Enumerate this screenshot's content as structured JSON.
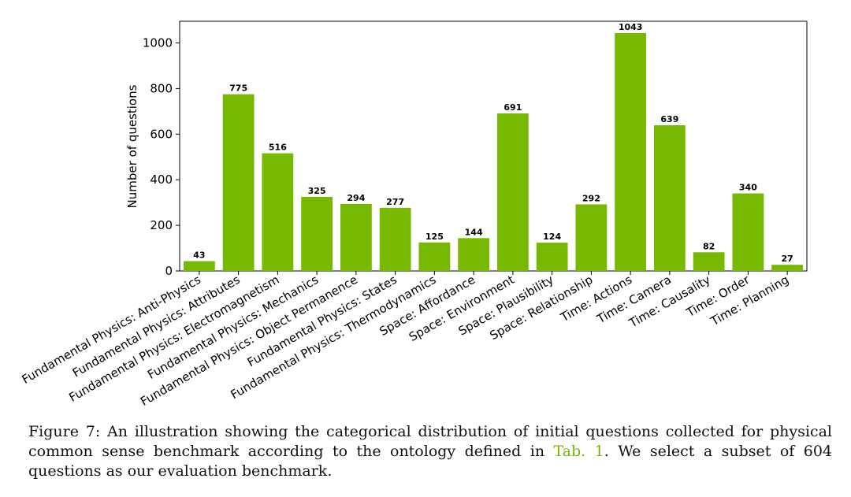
{
  "chart_data": {
    "type": "bar",
    "categories": [
      "Fundamental Physics: Anti-Physics",
      "Fundamental Physics: Attributes",
      "Fundamental Physics: Electromagnetism",
      "Fundamental Physics: Mechanics",
      "Fundamental Physics: Object Permanence",
      "Fundamental Physics: States",
      "Fundamental Physics: Thermodynamics",
      "Space: Affordance",
      "Space: Environment",
      "Space: Plausibility",
      "Space: Relationship",
      "Time: Actions",
      "Time: Camera",
      "Time: Causality",
      "Time: Order",
      "Time: Planning"
    ],
    "values": [
      43,
      775,
      516,
      325,
      294,
      277,
      125,
      144,
      691,
      124,
      292,
      1043,
      639,
      82,
      340,
      27
    ],
    "value_labels": [
      "43",
      "775",
      "516",
      "325",
      "294",
      "277",
      "125",
      "144",
      "691",
      "124",
      "292",
      "1043",
      "639",
      "82",
      "340",
      "27"
    ],
    "ylabel": "Number of questions",
    "ylim": [
      0,
      1095
    ],
    "yticks": [
      0,
      200,
      400,
      600,
      800,
      1000
    ],
    "ytick_labels": [
      "0",
      "200",
      "400",
      "600",
      "800",
      "1000"
    ],
    "bar_color": "#76b900",
    "grid": false,
    "data_labels": true
  },
  "caption": {
    "prefix": "Figure 7: An illustration showing the categorical distribution of initial questions collected for physical common sense benchmark according to the ontology defined in ",
    "ref": "Tab. 1",
    "suffix": ". We select a subset of 604 questions as our evaluation benchmark."
  }
}
